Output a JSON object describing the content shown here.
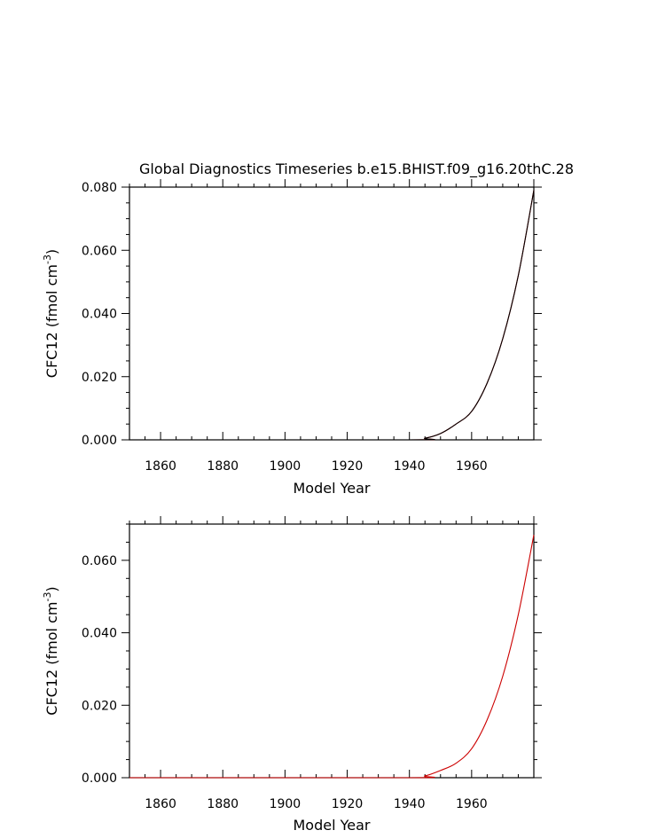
{
  "chart_data": [
    {
      "type": "line",
      "title": "Global Diagnostics Timeseries b.e15.BHIST.f09_g16.20thC.28",
      "xlabel": "Model Year",
      "ylabel": "CFC12 (fmol cm",
      "ylabel_sup": "-3",
      "ylabel_close": ")",
      "xlim": [
        1850,
        1980
      ],
      "ylim": [
        0,
        0.08
      ],
      "x_ticks": [
        "1860",
        "1880",
        "1900",
        "1920",
        "1940",
        "1960"
      ],
      "y_ticks": [
        "0.000",
        "0.020",
        "0.040",
        "0.060",
        "0.080"
      ],
      "grid": false,
      "series": [
        {
          "color": "#cc0000",
          "x": [
            1850,
            1940,
            1945,
            1950,
            1955,
            1960,
            1965,
            1970,
            1975,
            1980
          ],
          "y": [
            0,
            0,
            0.0005,
            0.002,
            0.005,
            0.009,
            0.018,
            0.032,
            0.052,
            0.079
          ]
        },
        {
          "color": "#000000",
          "x": [
            1850,
            1940,
            1945,
            1950,
            1955,
            1960,
            1965,
            1970,
            1975,
            1980
          ],
          "y": [
            0,
            0,
            0.0005,
            0.002,
            0.005,
            0.009,
            0.018,
            0.032,
            0.052,
            0.079
          ]
        }
      ]
    },
    {
      "type": "line",
      "title": "",
      "xlabel": "Model Year",
      "ylabel": "CFC12 (fmol cm",
      "ylabel_sup": "-3",
      "ylabel_close": ")",
      "xlim": [
        1850,
        1980
      ],
      "ylim": [
        0,
        0.07
      ],
      "x_ticks": [
        "1860",
        "1880",
        "1900",
        "1920",
        "1940",
        "1960"
      ],
      "y_ticks": [
        "0.000",
        "0.020",
        "0.040",
        "0.060"
      ],
      "grid": false,
      "series": [
        {
          "color": "#cc0000",
          "x": [
            1850,
            1940,
            1945,
            1950,
            1955,
            1960,
            1965,
            1970,
            1975,
            1980
          ],
          "y": [
            0,
            0,
            0.0005,
            0.002,
            0.004,
            0.008,
            0.016,
            0.028,
            0.045,
            0.067
          ]
        }
      ]
    }
  ]
}
